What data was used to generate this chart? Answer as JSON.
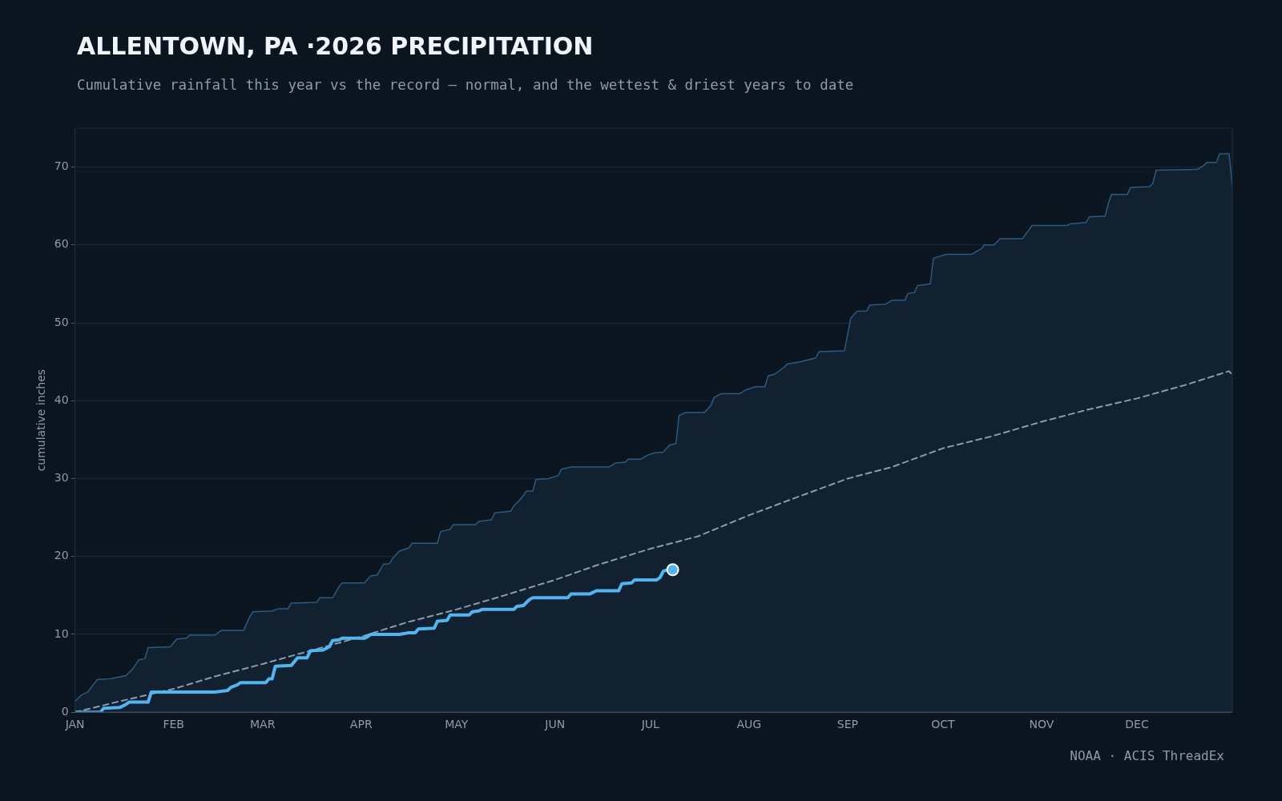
{
  "chart_data": {
    "type": "line",
    "title": "ALLENTOWN, PA ·2026 PRECIPITATION",
    "subtitle": "Cumulative rainfall this year vs the record — normal, and the wettest & driest years to date",
    "ylabel": "cumulative inches",
    "annotations": [
      "NOAA · ACIS ThreadEx"
    ],
    "xlim": [
      "--01-01",
      "--12-31"
    ],
    "xticks": [
      {
        "value": "--01-01",
        "label": "JAN"
      },
      {
        "value": "--02-01",
        "label": "FEB"
      },
      {
        "value": "--03-01",
        "label": "MAR"
      },
      {
        "value": "--04-01",
        "label": "APR"
      },
      {
        "value": "--05-01",
        "label": "MAY"
      },
      {
        "value": "--06-01",
        "label": "JUN"
      },
      {
        "value": "--07-01",
        "label": "JUL"
      },
      {
        "value": "--08-01",
        "label": "AUG"
      },
      {
        "value": "--09-01",
        "label": "SEP"
      },
      {
        "value": "--10-01",
        "label": "OCT"
      },
      {
        "value": "--11-01",
        "label": "NOV"
      },
      {
        "value": "--12-01",
        "label": "DEC"
      }
    ],
    "ylim": [
      0,
      75
    ],
    "yticks": [
      0,
      10,
      20,
      30,
      40,
      50,
      60,
      70
    ],
    "grid": "y",
    "legend": false,
    "series": [
      {
        "type": "area",
        "color": "#2a5b82",
        "marker": "none",
        "line_style": "solid",
        "x": [
          "--01-01",
          "--01-03",
          "--01-05",
          "--01-08",
          "--01-12",
          "--01-17",
          "--01-19",
          "--01-21",
          "--01-23",
          "--01-24",
          "--01-31",
          "--02-02",
          "--02-05",
          "--02-06",
          "--02-14",
          "--02-16",
          "--02-23",
          "--02-25",
          "--02-26",
          "--03-04",
          "--03-06",
          "--03-09",
          "--03-10",
          "--03-18",
          "--03-19",
          "--03-23",
          "--03-25",
          "--03-26",
          "--04-02",
          "--04-04",
          "--04-06",
          "--04-08",
          "--04-10",
          "--04-11",
          "--04-13",
          "--04-16",
          "--04-17",
          "--04-25",
          "--04-26",
          "--04-29",
          "--04-30",
          "--05-07",
          "--05-08",
          "--05-12",
          "--05-13",
          "--05-18",
          "--05-19",
          "--05-21",
          "--05-23",
          "--05-25",
          "--05-26",
          "--05-30",
          "--06-02",
          "--06-03",
          "--06-06",
          "--06-18",
          "--06-20",
          "--06-23",
          "--06-24",
          "--06-28",
          "--06-30",
          "--07-02",
          "--07-05",
          "--07-07",
          "--07-09",
          "--07-10",
          "--07-12",
          "--07-18",
          "--07-20",
          "--07-21",
          "--07-23",
          "--07-29",
          "--07-31",
          "--08-03",
          "--08-06",
          "--08-07",
          "--08-09",
          "--08-12",
          "--08-13",
          "--08-17",
          "--08-22",
          "--08-23",
          "--08-31",
          "--09-02",
          "--09-04",
          "--09-07",
          "--09-08",
          "--09-13",
          "--09-15",
          "--09-19",
          "--09-20",
          "--09-22",
          "--09-23",
          "--09-27",
          "--09-28",
          "--10-02",
          "--10-10",
          "--10-13",
          "--10-14",
          "--10-17",
          "--10-19",
          "--10-26",
          "--10-27",
          "--10-28",
          "--10-29",
          "--11-09",
          "--11-10",
          "--11-15",
          "--11-16",
          "--11-21",
          "--11-22",
          "--11-23",
          "--11-28",
          "--11-29",
          "--12-05",
          "--12-06",
          "--12-07",
          "--12-20",
          "--12-22",
          "--12-23",
          "--12-26",
          "--12-27",
          "--12-30",
          "--12-31"
        ],
        "values": [
          1.4,
          2.2,
          2.6,
          4.2,
          4.3,
          4.7,
          5.5,
          6.7,
          6.9,
          8.3,
          8.4,
          9.4,
          9.5,
          9.9,
          9.9,
          10.5,
          10.5,
          12.3,
          12.9,
          13.0,
          13.3,
          13.3,
          14.0,
          14.1,
          14.7,
          14.7,
          16.1,
          16.6,
          16.6,
          17.5,
          17.6,
          19.0,
          19.1,
          19.8,
          20.7,
          21.1,
          21.7,
          21.7,
          23.2,
          23.5,
          24.1,
          24.1,
          24.5,
          24.7,
          25.6,
          25.8,
          26.5,
          27.3,
          28.4,
          28.4,
          29.9,
          30.0,
          30.4,
          31.2,
          31.5,
          31.5,
          32.0,
          32.1,
          32.5,
          32.5,
          33.0,
          33.3,
          33.4,
          34.3,
          34.5,
          38.1,
          38.5,
          38.5,
          39.4,
          40.4,
          40.9,
          40.9,
          41.4,
          41.8,
          41.8,
          43.2,
          43.4,
          44.3,
          44.7,
          45.0,
          45.5,
          46.3,
          46.4,
          50.6,
          51.5,
          51.5,
          52.3,
          52.4,
          52.9,
          52.9,
          53.8,
          53.9,
          54.8,
          55.0,
          58.3,
          58.8,
          58.8,
          59.5,
          60.0,
          60.0,
          60.8,
          60.8,
          61.4,
          61.9,
          62.5,
          62.5,
          62.7,
          62.9,
          63.6,
          63.7,
          65.3,
          66.5,
          66.5,
          67.4,
          67.5,
          67.9,
          69.6,
          69.7,
          70.2,
          70.6,
          70.6,
          71.7,
          71.7,
          67.5
        ]
      },
      {
        "type": "line",
        "color": "#8a9bab",
        "marker": "none",
        "line_style": "dashed",
        "x": [
          "--01-01",
          "--01-15",
          "--02-01",
          "--02-14",
          "--03-01",
          "--03-16",
          "--04-01",
          "--04-15",
          "--05-01",
          "--05-16",
          "--06-01",
          "--06-15",
          "--07-01",
          "--07-16",
          "--08-01",
          "--08-16",
          "--09-01",
          "--09-15",
          "--10-01",
          "--10-16",
          "--11-01",
          "--11-15",
          "--12-01",
          "--12-16",
          "--12-30",
          "--12-31"
        ],
        "values": [
          0,
          1.4,
          3.0,
          4.6,
          6.2,
          7.9,
          9.7,
          11.5,
          13.2,
          15.0,
          17.0,
          19.0,
          21.0,
          22.6,
          25.3,
          27.6,
          30.0,
          31.5,
          33.9,
          35.4,
          37.3,
          38.8,
          40.3,
          42.0,
          43.8,
          43.3
        ]
      },
      {
        "type": "line",
        "color": "#4fb6f2",
        "marker": "none",
        "line_style": "solid",
        "x": [
          "--01-01",
          "--01-09",
          "--01-10",
          "--01-15",
          "--01-17",
          "--01-18",
          "--01-24",
          "--01-25",
          "--02-14",
          "--02-18",
          "--02-19",
          "--02-21",
          "--02-22",
          "--03-02",
          "--03-03",
          "--03-04",
          "--03-05",
          "--03-10",
          "--03-12",
          "--03-15",
          "--03-16",
          "--03-20",
          "--03-22",
          "--03-23",
          "--03-25",
          "--03-26",
          "--04-02",
          "--04-03",
          "--04-04",
          "--04-13",
          "--04-16",
          "--04-18",
          "--04-19",
          "--04-24",
          "--04-25",
          "--04-28",
          "--04-29",
          "--05-05",
          "--05-06",
          "--05-08",
          "--05-09",
          "--05-19",
          "--05-20",
          "--05-22",
          "--05-24",
          "--05-25",
          "--06-05",
          "--06-06",
          "--06-12",
          "--06-14",
          "--06-21",
          "--06-22",
          "--06-25",
          "--06-26",
          "--07-03",
          "--07-04",
          "--07-05",
          "--07-07",
          "--07-08"
        ],
        "values": [
          0,
          0,
          0.5,
          0.6,
          1.0,
          1.3,
          1.3,
          2.6,
          2.6,
          2.8,
          3.2,
          3.5,
          3.8,
          3.8,
          4.3,
          4.3,
          5.9,
          6.0,
          7.0,
          7.0,
          7.9,
          8.0,
          8.4,
          9.2,
          9.3,
          9.5,
          9.5,
          9.7,
          10.0,
          10.0,
          10.2,
          10.2,
          10.7,
          10.8,
          11.7,
          11.8,
          12.5,
          12.5,
          12.9,
          13.0,
          13.2,
          13.2,
          13.6,
          13.7,
          14.5,
          14.7,
          14.7,
          15.2,
          15.2,
          15.6,
          15.6,
          16.5,
          16.6,
          17.0,
          17.0,
          17.3,
          18.1,
          18.4,
          18.3
        ]
      },
      {
        "type": "scatter",
        "color": "#4fb6f2",
        "marker": "circle",
        "x": [
          "--07-08"
        ],
        "values": [
          18.3
        ]
      }
    ]
  }
}
